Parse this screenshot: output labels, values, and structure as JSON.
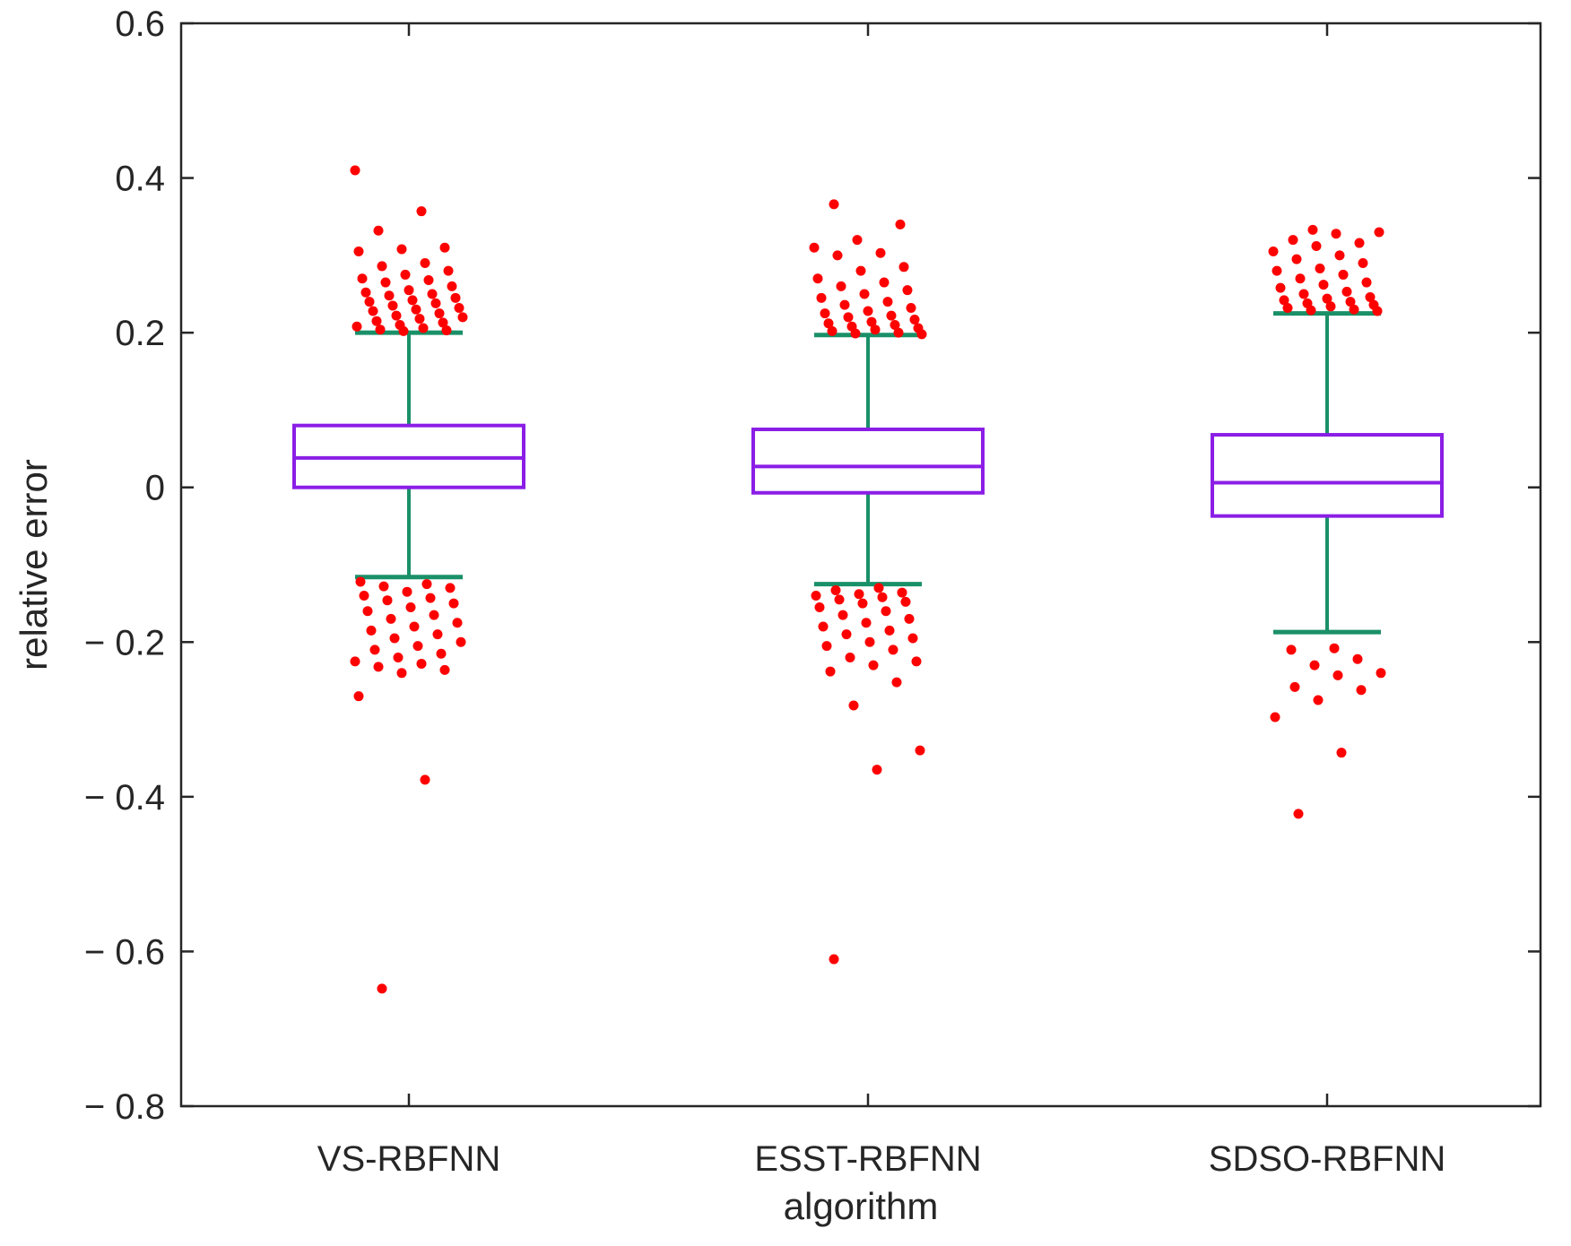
{
  "chart_data": {
    "type": "boxplot",
    "title": "",
    "xlabel": "algorithm",
    "ylabel": "relative error",
    "ylim": [
      -0.8,
      0.6
    ],
    "yticks": [
      -0.8,
      -0.6,
      -0.4,
      -0.2,
      0,
      0.2,
      0.4,
      0.6
    ],
    "ytick_labels": [
      "− 0.8",
      "− 0.6",
      "− 0.4",
      "− 0.2",
      "0",
      "0.2",
      "0.4",
      "0.6"
    ],
    "categories": [
      "VS-RBFNN",
      "ESST-RBFNN",
      "SDSO-RBFNN"
    ],
    "colors": {
      "box": "#8b1ee6",
      "whisker": "#1a9068",
      "outlier": "#ff0000",
      "axis": "#262626"
    },
    "series": [
      {
        "name": "VS-RBFNN",
        "q1": 0.0,
        "median": 0.038,
        "q3": 0.08,
        "whisker_low": -0.116,
        "whisker_high": 0.2,
        "outliers": [
          0.41,
          0.357,
          0.332,
          0.31,
          0.308,
          0.305,
          0.29,
          0.286,
          0.28,
          0.275,
          0.27,
          0.268,
          0.265,
          0.26,
          0.255,
          0.252,
          0.25,
          0.248,
          0.245,
          0.242,
          0.24,
          0.238,
          0.235,
          0.232,
          0.23,
          0.228,
          0.225,
          0.222,
          0.22,
          0.218,
          0.215,
          0.213,
          0.21,
          0.208,
          0.206,
          0.204,
          0.203,
          0.202,
          -0.122,
          -0.125,
          -0.128,
          -0.13,
          -0.135,
          -0.14,
          -0.143,
          -0.146,
          -0.15,
          -0.155,
          -0.16,
          -0.165,
          -0.17,
          -0.175,
          -0.18,
          -0.185,
          -0.19,
          -0.195,
          -0.2,
          -0.205,
          -0.21,
          -0.215,
          -0.22,
          -0.225,
          -0.228,
          -0.232,
          -0.236,
          -0.24,
          -0.27,
          -0.378,
          -0.648
        ]
      },
      {
        "name": "ESST-RBFNN",
        "q1": -0.007,
        "median": 0.027,
        "q3": 0.075,
        "whisker_low": -0.125,
        "whisker_high": 0.197,
        "outliers": [
          0.366,
          0.34,
          0.32,
          0.31,
          0.303,
          0.3,
          0.285,
          0.28,
          0.27,
          0.265,
          0.26,
          0.255,
          0.25,
          0.245,
          0.24,
          0.236,
          0.232,
          0.228,
          0.225,
          0.222,
          0.22,
          0.217,
          0.214,
          0.212,
          0.21,
          0.208,
          0.206,
          0.204,
          0.202,
          0.2,
          0.199,
          0.198,
          -0.13,
          -0.133,
          -0.136,
          -0.138,
          -0.14,
          -0.142,
          -0.145,
          -0.148,
          -0.15,
          -0.155,
          -0.16,
          -0.165,
          -0.17,
          -0.175,
          -0.18,
          -0.185,
          -0.19,
          -0.195,
          -0.2,
          -0.205,
          -0.21,
          -0.22,
          -0.225,
          -0.23,
          -0.238,
          -0.252,
          -0.282,
          -0.34,
          -0.365,
          -0.61
        ]
      },
      {
        "name": "SDSO-RBFNN",
        "q1": -0.037,
        "median": 0.006,
        "q3": 0.068,
        "whisker_low": -0.187,
        "whisker_high": 0.225,
        "outliers": [
          0.333,
          0.33,
          0.328,
          0.32,
          0.316,
          0.312,
          0.305,
          0.3,
          0.295,
          0.29,
          0.283,
          0.28,
          0.275,
          0.27,
          0.265,
          0.262,
          0.258,
          0.253,
          0.25,
          0.246,
          0.244,
          0.242,
          0.24,
          0.238,
          0.236,
          0.234,
          0.232,
          0.23,
          0.229,
          0.228,
          -0.208,
          -0.21,
          -0.222,
          -0.23,
          -0.24,
          -0.243,
          -0.258,
          -0.262,
          -0.275,
          -0.297,
          -0.343,
          -0.422
        ]
      }
    ]
  }
}
